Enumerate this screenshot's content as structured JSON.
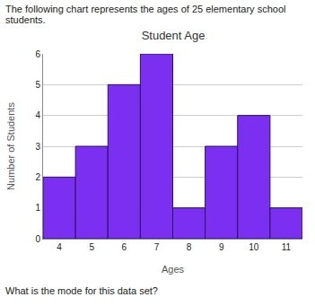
{
  "text": {
    "intro": "The following chart represents the ages of 25 elementary school students.",
    "question": "What is the mode for this data set?"
  },
  "chart_data": {
    "type": "bar",
    "title": "Student Age",
    "x_label": "Ages",
    "y_label": "Number of Students",
    "categories": [
      "4",
      "5",
      "6",
      "7",
      "8",
      "9",
      "10",
      "11"
    ],
    "values": [
      2,
      3,
      5,
      6,
      1,
      3,
      4,
      1
    ],
    "color": "#7b2ff0",
    "ylim": [
      0,
      6
    ],
    "yticks": [
      0,
      1,
      2,
      3,
      4,
      5,
      6
    ],
    "grid": true
  }
}
